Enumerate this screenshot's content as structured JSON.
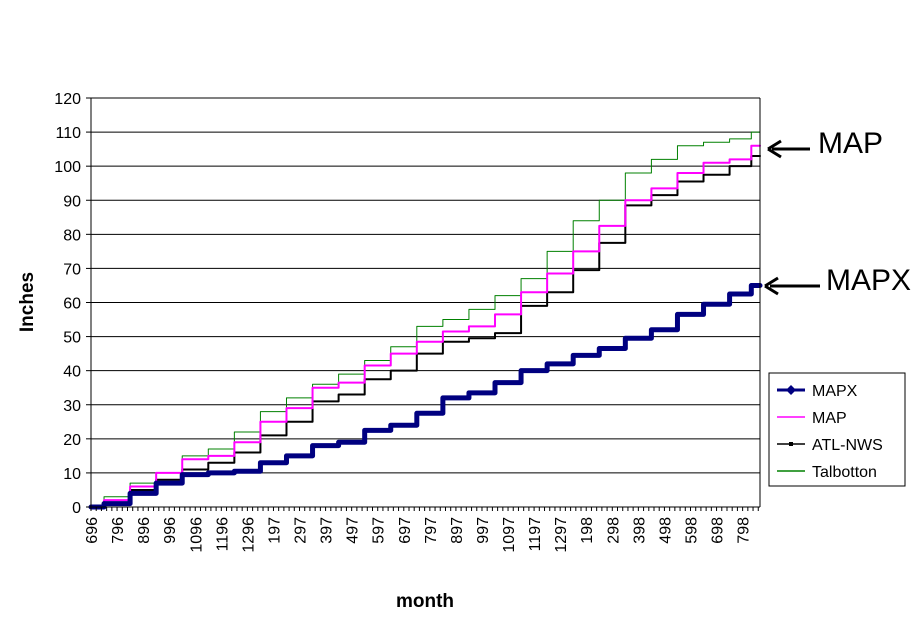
{
  "chart_data": {
    "type": "line",
    "title": "",
    "xlabel": "month",
    "ylabel": "Inches",
    "ylim": [
      0,
      120
    ],
    "yticks": [
      0,
      10,
      20,
      30,
      40,
      50,
      60,
      70,
      80,
      90,
      100,
      110,
      120
    ],
    "grid": true,
    "legend_position": "right",
    "x_tick_labels": [
      "696",
      "796",
      "896",
      "996",
      "1096",
      "1196",
      "1296",
      "197",
      "297",
      "397",
      "497",
      "597",
      "697",
      "797",
      "897",
      "997",
      "1097",
      "1197",
      "1297",
      "198",
      "298",
      "398",
      "498",
      "598",
      "698",
      "798"
    ],
    "x_points_per_label": 30,
    "annotations": [
      {
        "text": "MAP",
        "points_to_series": "MAP"
      },
      {
        "text": "MAPX",
        "points_to_series": "MAPX"
      }
    ],
    "series": [
      {
        "name": "MAPX",
        "color": "#000080",
        "marker": "diamond",
        "x_index": [
          0,
          30,
          60,
          90,
          120,
          150,
          180,
          210,
          240,
          270,
          300,
          330,
          360,
          390,
          420,
          450,
          480,
          510,
          540,
          570,
          600,
          630,
          660,
          690,
          720,
          750,
          770
        ],
        "values": [
          0,
          1,
          4,
          7,
          9.5,
          10,
          10.5,
          13,
          15,
          18,
          19,
          22.5,
          24,
          27.5,
          32,
          33.5,
          36.5,
          40,
          42,
          44.5,
          46.5,
          49.5,
          52,
          56.5,
          59.5,
          62.5,
          65
        ]
      },
      {
        "name": "MAP",
        "color": "#ff00ff",
        "marker": "none",
        "x_index": [
          0,
          30,
          60,
          90,
          120,
          150,
          180,
          210,
          240,
          270,
          300,
          330,
          360,
          390,
          420,
          450,
          480,
          510,
          540,
          570,
          600,
          630,
          660,
          690,
          720,
          750,
          770
        ],
        "values": [
          0,
          2,
          6,
          10,
          14,
          15,
          19,
          25,
          29,
          35,
          36.5,
          41.5,
          45,
          48.5,
          51.5,
          53,
          56.5,
          63,
          68.5,
          75,
          82.5,
          90,
          93.5,
          98,
          101,
          102,
          106
        ]
      },
      {
        "name": "ATL-NWS",
        "color": "#000000",
        "marker": "small",
        "x_index": [
          0,
          30,
          60,
          90,
          120,
          150,
          180,
          210,
          240,
          270,
          300,
          330,
          360,
          390,
          420,
          450,
          480,
          510,
          540,
          570,
          600,
          630,
          660,
          690,
          720,
          750,
          770
        ],
        "values": [
          0,
          1,
          5,
          8,
          11,
          13,
          16,
          21,
          25,
          31,
          33,
          37.5,
          40,
          45,
          48.5,
          49.5,
          51,
          59,
          63,
          69.5,
          77.5,
          88.5,
          91.5,
          95.5,
          97.5,
          100,
          103
        ]
      },
      {
        "name": "Talbotton",
        "color": "#008000",
        "marker": "none",
        "x_index": [
          0,
          30,
          60,
          90,
          120,
          150,
          180,
          210,
          240,
          270,
          300,
          330,
          360,
          390,
          420,
          450,
          480,
          510,
          540,
          570,
          600,
          630,
          660,
          690,
          720,
          750,
          770
        ],
        "values": [
          0,
          3,
          7,
          10,
          15,
          17,
          22,
          28,
          32,
          36,
          39,
          43,
          47,
          53,
          55,
          58,
          62,
          67,
          75,
          84,
          90,
          98,
          102,
          106,
          107,
          108,
          110
        ]
      }
    ]
  }
}
